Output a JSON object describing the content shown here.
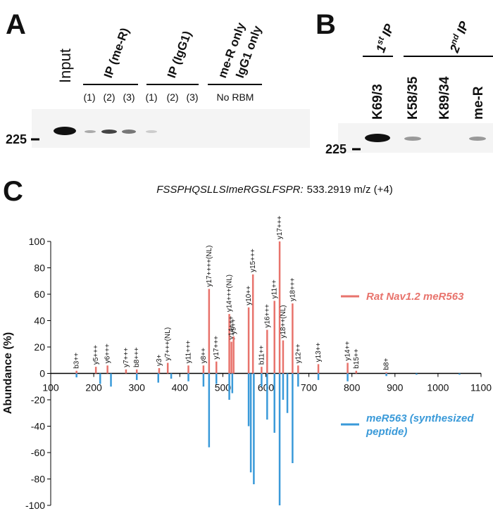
{
  "panel_a": {
    "letter": "A",
    "input": "Input",
    "groups": [
      "IP (me-R)",
      "IP (IgG1)",
      "me-R only",
      "IgG1 only"
    ],
    "sublabels": [
      "(1)",
      "(2)",
      "(3)",
      "(1)",
      "(2)",
      "(3)",
      "No RBM"
    ],
    "marker": "225"
  },
  "panel_b": {
    "letter": "B",
    "first_ip": {
      "num": "1",
      "sup": "st",
      "text": "IP"
    },
    "second_ip": {
      "num": "2",
      "sup": "nd",
      "text": "IP"
    },
    "lanes": [
      "K69/3",
      "K58/35",
      "K89/34",
      "me-R"
    ],
    "marker": "225"
  },
  "chart_data": {
    "type": "mirror",
    "letter": "C",
    "title_peptide": "FSSPHQSLLSImeRGSLFSPR:",
    "title_mz": "533.2919 m/z (+4)",
    "ylabel": "Abundance (%)",
    "xlim": [
      100,
      1100
    ],
    "xticks": [
      100,
      200,
      300,
      400,
      500,
      600,
      700,
      800,
      900,
      1000,
      1100
    ],
    "ylim": [
      -100,
      100
    ],
    "yticks": [
      -100,
      -80,
      -60,
      -40,
      -20,
      0,
      20,
      40,
      60,
      80,
      100
    ],
    "series": [
      {
        "name": "Rat Nav1.2 meR563",
        "color": "#e8736c",
        "x": [
          160,
          205,
          232,
          275,
          300,
          352,
          372,
          420,
          455,
          468,
          485,
          515,
          520,
          525,
          560,
          570,
          590,
          603,
          620,
          632,
          640,
          662,
          675,
          722,
          790,
          810,
          880
        ],
        "values": [
          2,
          5,
          6,
          3,
          3,
          4,
          8,
          6,
          6,
          64,
          9,
          45,
          24,
          28,
          50,
          75,
          5,
          33,
          55,
          100,
          25,
          53,
          6,
          7,
          8,
          2,
          1
        ],
        "peak_labels": [
          "b3++",
          "y5+++",
          "y6+++",
          "y7+++",
          "b8+++",
          "y3+",
          "y7+++(NL)",
          "y11+++",
          "y8++",
          "y17++++(NL)",
          "y17+++",
          "y14+++(NL)",
          "y14+++",
          "y9++",
          "y10++",
          "y15+++",
          "b11++",
          "y16+++",
          "y11++",
          "y17+++",
          "y18++(NL)",
          "y18+++",
          "y12++",
          "y13++",
          "y14++",
          "b15++",
          "b8+"
        ]
      },
      {
        "name": "meR563 (synthesized peptide)",
        "color": "#3a9ad9",
        "x": [
          160,
          215,
          240,
          300,
          350,
          380,
          420,
          455,
          468,
          485,
          515,
          522,
          560,
          565,
          572,
          590,
          603,
          620,
          632,
          640,
          650,
          662,
          675,
          722,
          790,
          880,
          950,
          1050
        ],
        "values": [
          -3,
          -8,
          -10,
          -5,
          -7,
          -4,
          -6,
          -10,
          -56,
          -8,
          -20,
          -15,
          -40,
          -75,
          -84,
          -10,
          -35,
          -45,
          -100,
          -20,
          -30,
          -68,
          -10,
          -5,
          -6,
          -2,
          -1,
          -1
        ]
      }
    ]
  }
}
